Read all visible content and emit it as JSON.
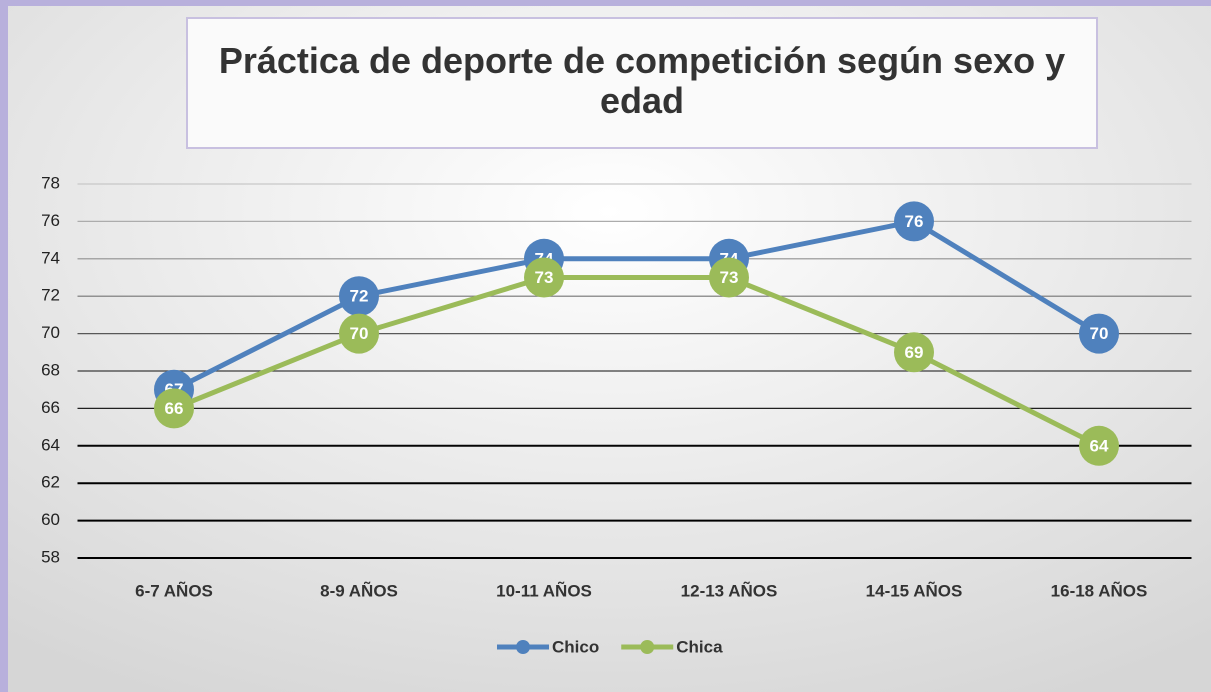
{
  "chart_data": {
    "type": "line",
    "title": "Práctica de deporte de competición según sexo y edad",
    "categories": [
      "6-7 AÑOS",
      "8-9 AÑOS",
      "10-11 AÑOS",
      "12-13 AÑOS",
      "14-15 AÑOS",
      "16-18 AÑOS"
    ],
    "series": [
      {
        "name": "Chico",
        "color": "#4f81bd",
        "values": [
          67,
          72,
          74,
          74,
          76,
          70
        ]
      },
      {
        "name": "Chica",
        "color": "#9bbb59",
        "values": [
          66,
          70,
          73,
          73,
          69,
          64
        ]
      }
    ],
    "ylim": [
      58,
      78
    ],
    "yticks": [
      58,
      60,
      62,
      64,
      66,
      68,
      70,
      72,
      74,
      76,
      78
    ],
    "grid": true,
    "legend": "bottom",
    "data_labels": true
  }
}
